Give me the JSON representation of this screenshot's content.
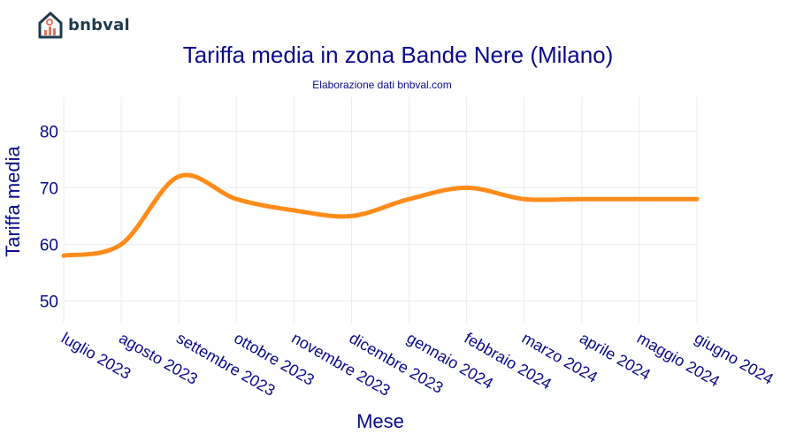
{
  "brand": {
    "name": "bnbval",
    "colors": {
      "house": "#1f3b4d",
      "bars": "#e8735a"
    }
  },
  "chart_data": {
    "type": "line",
    "title": "Tariffa media in zona Bande Nere (Milano)",
    "subtitle": "Elaborazione dati bnbval.com",
    "xlabel": "Mese",
    "ylabel": "Tariffa media",
    "categories": [
      "luglio 2023",
      "agosto 2023",
      "settembre 2023",
      "ottobre 2023",
      "novembre 2023",
      "dicembre 2023",
      "gennaio 2024",
      "febbraio 2024",
      "marzo 2024",
      "aprile 2024",
      "maggio 2024",
      "giugno 2024"
    ],
    "series": [
      {
        "values": [
          58,
          60,
          72,
          68,
          66,
          65,
          68,
          70,
          68,
          68,
          68,
          68
        ],
        "color": "#ff8c1a"
      }
    ],
    "ylim": [
      46,
      86
    ],
    "yticks": [
      50,
      60,
      70,
      80
    ],
    "grid": true,
    "text_color": "#0a0a8c",
    "grid_color": "#ececec"
  }
}
